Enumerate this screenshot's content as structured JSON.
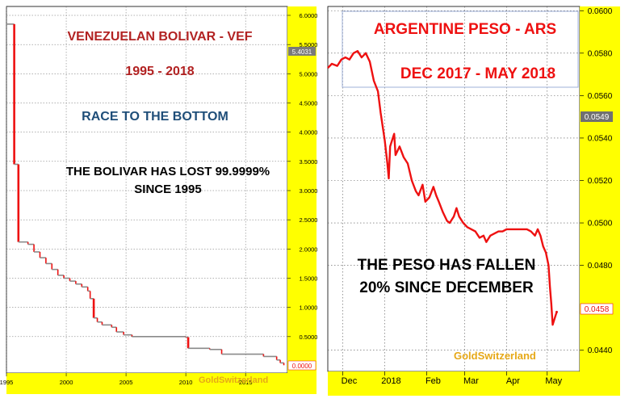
{
  "colors": {
    "panel_bg": "#ffffff",
    "axis_bg": "#ffff00",
    "line_red": "#ee1111",
    "line_gray": "#8a8a8a",
    "title_red": "#b22222",
    "title_blue": "#1f4e79",
    "brand_gold": "#e6a817",
    "current_label_bg": "#7a7a7a",
    "zero_label_red": "#ee1111",
    "ars_label_bg": "#707070"
  },
  "chart_data": [
    {
      "type": "line",
      "title": "VENEZUELAN BOLIVAR - VEF",
      "subtitle": "1995 - 2018",
      "annotation_blue": "RACE TO THE BOTTOM",
      "annotation_black_1": "THE BOLIVAR HAS LOST 99.9999%",
      "annotation_black_2": "SINCE 1995",
      "brand": "GoldSwitzerland",
      "xlabel": "",
      "ylabel": "",
      "xlim": [
        1995.0,
        2018.5
      ],
      "ylim": [
        0,
        6.0
      ],
      "x_ticks": [
        "1995",
        "2000",
        "2005",
        "2010",
        "2015"
      ],
      "y_ticks": [
        "6.0000",
        "5.5000",
        "5.0000",
        "4.5000",
        "4.0000",
        "3.5000",
        "3.0000",
        "2.5000",
        "2.0000",
        "1.5000",
        "1.0000",
        "0.5000"
      ],
      "current_label": "5.4031",
      "zero_label": "0.0000",
      "grid": true,
      "points": [
        [
          1995.0,
          5.85
        ],
        [
          1995.6,
          5.85
        ],
        [
          1995.65,
          3.45
        ],
        [
          1995.95,
          3.45
        ],
        [
          1996.0,
          2.12
        ],
        [
          1996.8,
          2.08
        ],
        [
          1997.3,
          1.95
        ],
        [
          1997.8,
          1.85
        ],
        [
          1998.3,
          1.75
        ],
        [
          1998.8,
          1.65
        ],
        [
          1999.3,
          1.55
        ],
        [
          1999.8,
          1.5
        ],
        [
          2000.3,
          1.45
        ],
        [
          2000.8,
          1.4
        ],
        [
          2001.3,
          1.35
        ],
        [
          2001.8,
          1.28
        ],
        [
          2002.0,
          1.15
        ],
        [
          2002.3,
          0.82
        ],
        [
          2002.6,
          0.75
        ],
        [
          2003.0,
          0.7
        ],
        [
          2003.8,
          0.66
        ],
        [
          2004.2,
          0.58
        ],
        [
          2004.8,
          0.53
        ],
        [
          2005.5,
          0.5
        ],
        [
          2010.0,
          0.49
        ],
        [
          2010.2,
          0.3
        ],
        [
          2012.0,
          0.28
        ],
        [
          2013.0,
          0.2
        ],
        [
          2016.5,
          0.16
        ],
        [
          2017.6,
          0.1
        ],
        [
          2017.9,
          0.05
        ],
        [
          2018.2,
          0.01
        ]
      ]
    },
    {
      "type": "line",
      "title": "ARGENTINE PESO - ARS",
      "subtitle": "DEC 2017 - MAY 2018",
      "annotation_black_1": "THE PESO HAS FALLEN",
      "annotation_black_2": "20% SINCE DECEMBER",
      "brand": "GoldSwitzerland",
      "xlabel": "",
      "ylabel": "",
      "xlim": [
        "2017-11-20",
        "2018-05-25"
      ],
      "ylim": [
        0.043,
        0.0602
      ],
      "x_ticks": [
        "Dec",
        "2018",
        "Feb",
        "Mar",
        "Apr",
        "May"
      ],
      "y_ticks": [
        "0.0600",
        "0.0580",
        "0.0560",
        "0.0540",
        "0.0520",
        "0.0500",
        "0.0480",
        "0.0440"
      ],
      "current_label": "0.0549",
      "last_label": "0.0458",
      "grid": true,
      "points": [
        [
          "2017-11-20",
          0.0573
        ],
        [
          "2017-11-23",
          0.0575
        ],
        [
          "2017-11-27",
          0.0574
        ],
        [
          "2017-11-30",
          0.0577
        ],
        [
          "2017-12-03",
          0.0578
        ],
        [
          "2017-12-06",
          0.0577
        ],
        [
          "2017-12-09",
          0.058
        ],
        [
          "2017-12-12",
          0.0581
        ],
        [
          "2017-12-15",
          0.0578
        ],
        [
          "2017-12-18",
          0.058
        ],
        [
          "2017-12-21",
          0.0576
        ],
        [
          "2017-12-24",
          0.0567
        ],
        [
          "2017-12-27",
          0.0562
        ],
        [
          "2017-12-29",
          0.0552
        ],
        [
          "2018-01-01",
          0.0539
        ],
        [
          "2018-01-03",
          0.0528
        ],
        [
          "2018-01-04",
          0.0521
        ],
        [
          "2018-01-05",
          0.0536
        ],
        [
          "2018-01-07",
          0.054
        ],
        [
          "2018-01-08",
          0.0542
        ],
        [
          "2018-01-09",
          0.0532
        ],
        [
          "2018-01-12",
          0.0536
        ],
        [
          "2018-01-15",
          0.0531
        ],
        [
          "2018-01-18",
          0.0528
        ],
        [
          "2018-01-21",
          0.052
        ],
        [
          "2018-01-24",
          0.0515
        ],
        [
          "2018-01-26",
          0.0513
        ],
        [
          "2018-01-29",
          0.0518
        ],
        [
          "2018-01-31",
          0.051
        ],
        [
          "2018-02-03",
          0.0512
        ],
        [
          "2018-02-06",
          0.0517
        ],
        [
          "2018-02-08",
          0.0513
        ],
        [
          "2018-02-10",
          0.051
        ],
        [
          "2018-02-13",
          0.0505
        ],
        [
          "2018-02-16",
          0.0501
        ],
        [
          "2018-02-18",
          0.05
        ],
        [
          "2018-02-21",
          0.0503
        ],
        [
          "2018-02-23",
          0.0507
        ],
        [
          "2018-02-25",
          0.0503
        ],
        [
          "2018-02-28",
          0.05
        ],
        [
          "2018-03-03",
          0.0498
        ],
        [
          "2018-03-06",
          0.0497
        ],
        [
          "2018-03-09",
          0.0496
        ],
        [
          "2018-03-12",
          0.0493
        ],
        [
          "2018-03-15",
          0.0494
        ],
        [
          "2018-03-17",
          0.0491
        ],
        [
          "2018-03-20",
          0.0494
        ],
        [
          "2018-03-23",
          0.0495
        ],
        [
          "2018-03-26",
          0.0496
        ],
        [
          "2018-03-29",
          0.0496
        ],
        [
          "2018-04-01",
          0.0497
        ],
        [
          "2018-04-04",
          0.0497
        ],
        [
          "2018-04-07",
          0.0497
        ],
        [
          "2018-04-10",
          0.0497
        ],
        [
          "2018-04-13",
          0.0497
        ],
        [
          "2018-04-16",
          0.0497
        ],
        [
          "2018-04-19",
          0.0496
        ],
        [
          "2018-04-22",
          0.0494
        ],
        [
          "2018-04-24",
          0.0497
        ],
        [
          "2018-04-26",
          0.0494
        ],
        [
          "2018-04-28",
          0.0489
        ],
        [
          "2018-04-30",
          0.0486
        ],
        [
          "2018-05-02",
          0.048
        ],
        [
          "2018-05-03",
          0.047
        ],
        [
          "2018-05-04",
          0.0462
        ],
        [
          "2018-05-05",
          0.0452
        ],
        [
          "2018-05-07",
          0.0456
        ],
        [
          "2018-05-08",
          0.0458
        ]
      ]
    }
  ]
}
